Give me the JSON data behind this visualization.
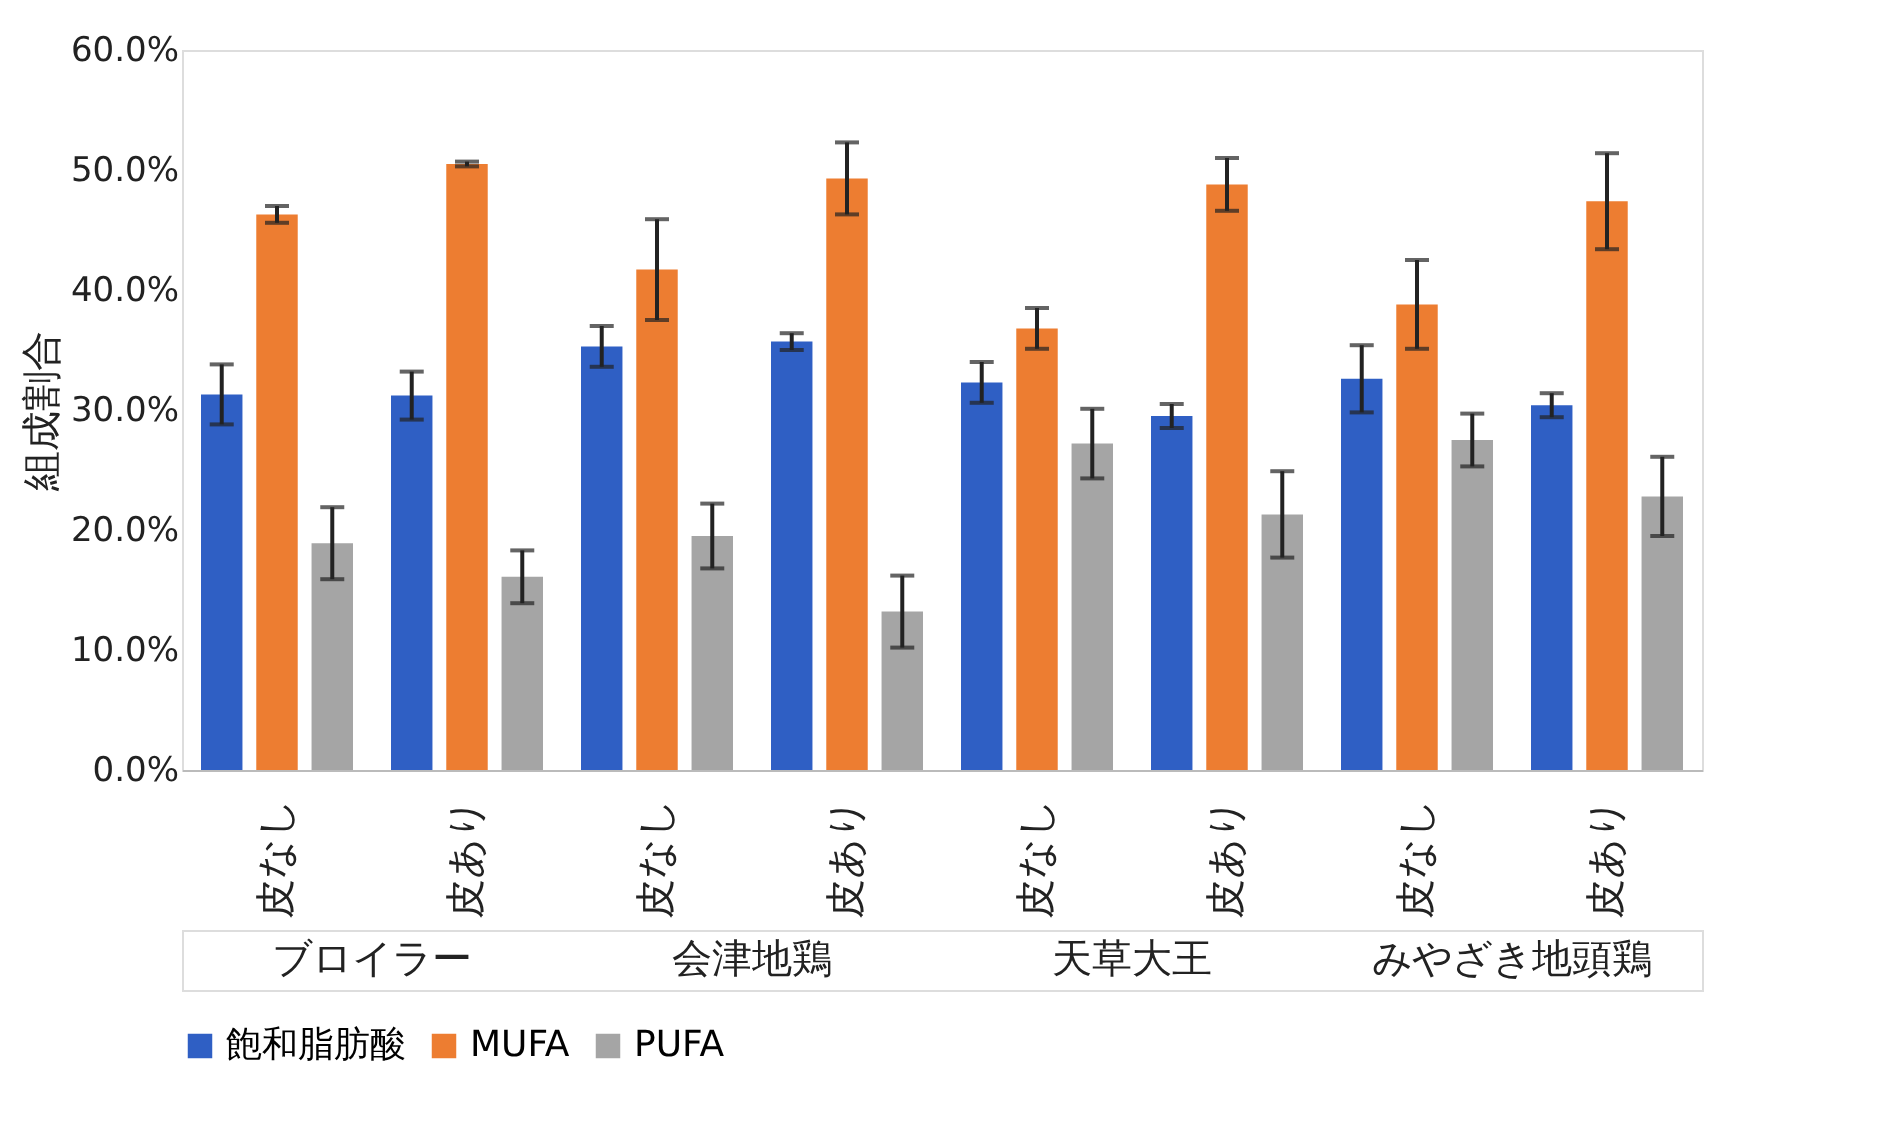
{
  "chart_data": {
    "type": "bar",
    "ylabel": "組成割合",
    "categories": [
      "皮なし",
      "皮あり",
      "皮なし",
      "皮あり",
      "皮なし",
      "皮あり",
      "皮なし",
      "皮あり"
    ],
    "annotations": [
      "ブロイラー",
      "会津地鶏",
      "天草大王",
      "みやざき地頭鶏"
    ],
    "series": [
      {
        "name": "飽和脂肪酸",
        "color": "#2f5fc4",
        "values": [
          31.3,
          31.2,
          35.3,
          35.7,
          32.3,
          29.5,
          32.6,
          30.4
        ],
        "errors": [
          2.5,
          2.0,
          1.7,
          0.7,
          1.7,
          1.0,
          2.8,
          1.0
        ]
      },
      {
        "name": "MUFA",
        "color": "#ed7d31",
        "values": [
          46.3,
          50.5,
          41.7,
          49.3,
          36.8,
          48.8,
          38.8,
          47.4
        ],
        "errors": [
          0.7,
          0.2,
          4.2,
          3.0,
          1.7,
          2.2,
          3.7,
          4.0
        ]
      },
      {
        "name": "PUFA",
        "color": "#a5a5a5",
        "values": [
          18.9,
          16.1,
          19.5,
          13.2,
          27.2,
          21.3,
          27.5,
          22.8
        ],
        "errors": [
          3.0,
          2.2,
          2.7,
          3.0,
          2.9,
          3.6,
          2.2,
          3.3
        ]
      }
    ],
    "ylim": [
      0,
      60
    ],
    "yticks": [
      {
        "value": 0,
        "label": "0.0%"
      },
      {
        "value": 10,
        "label": "10.0%"
      },
      {
        "value": 20,
        "label": "20.0%"
      },
      {
        "value": 30,
        "label": "30.0%"
      },
      {
        "value": 40,
        "label": "40.0%"
      },
      {
        "value": 50,
        "label": "50.0%"
      },
      {
        "value": 60,
        "label": "60.0%"
      }
    ],
    "grid": false,
    "legend": "bottom"
  }
}
